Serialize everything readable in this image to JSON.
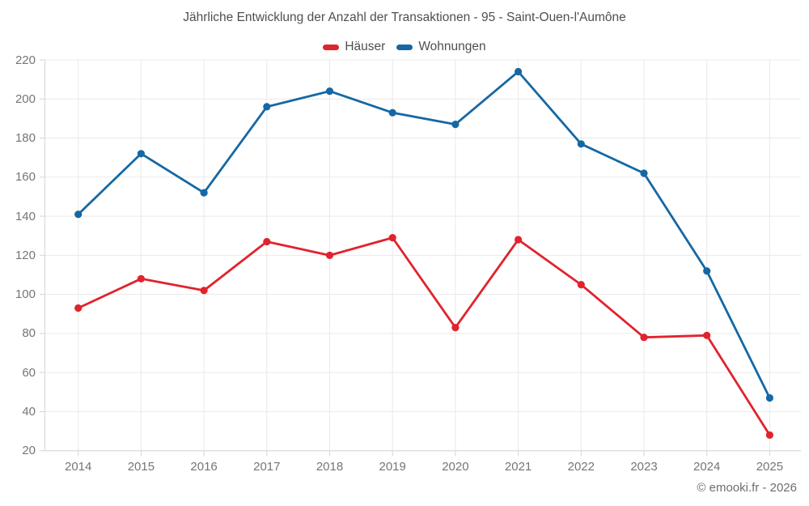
{
  "title": "Jährliche Entwicklung der Anzahl der Transaktionen - 95 - Saint-Ouen-l'Aumône",
  "footer": "© emooki.fr - 2026",
  "legend": {
    "items": [
      {
        "label": "Häuser",
        "color": "#e1232e"
      },
      {
        "label": "Wohnungen",
        "color": "#1568a3"
      }
    ]
  },
  "colors": {
    "haeuser": "#e1232e",
    "wohnungen": "#1568a3",
    "grid": "#e9e9e9",
    "axis": "#d5d5d5",
    "title_text": "#4f4f4f",
    "axis_text": "#757575",
    "footer_text": "#6e6e6e",
    "background": "#ffffff"
  },
  "chart_data": {
    "type": "line",
    "title": "Jährliche Entwicklung der Anzahl der Transaktionen - 95 - Saint-Ouen-l'Aumône",
    "categories": [
      "2014",
      "2015",
      "2016",
      "2017",
      "2018",
      "2019",
      "2020",
      "2021",
      "2022",
      "2023",
      "2024",
      "2025"
    ],
    "series": [
      {
        "name": "Häuser",
        "color": "#e1232e",
        "values": [
          93,
          108,
          102,
          127,
          120,
          129,
          83,
          128,
          105,
          78,
          79,
          28
        ]
      },
      {
        "name": "Wohnungen",
        "color": "#1568a3",
        "values": [
          141,
          172,
          152,
          196,
          204,
          193,
          187,
          214,
          177,
          162,
          112,
          47
        ]
      }
    ],
    "xlabel": "",
    "ylabel": "",
    "ylim": [
      20,
      220
    ],
    "y_ticks": [
      20,
      40,
      60,
      80,
      100,
      120,
      140,
      160,
      180,
      200,
      220
    ],
    "grid": true,
    "legend_position": "top",
    "markers": true
  }
}
